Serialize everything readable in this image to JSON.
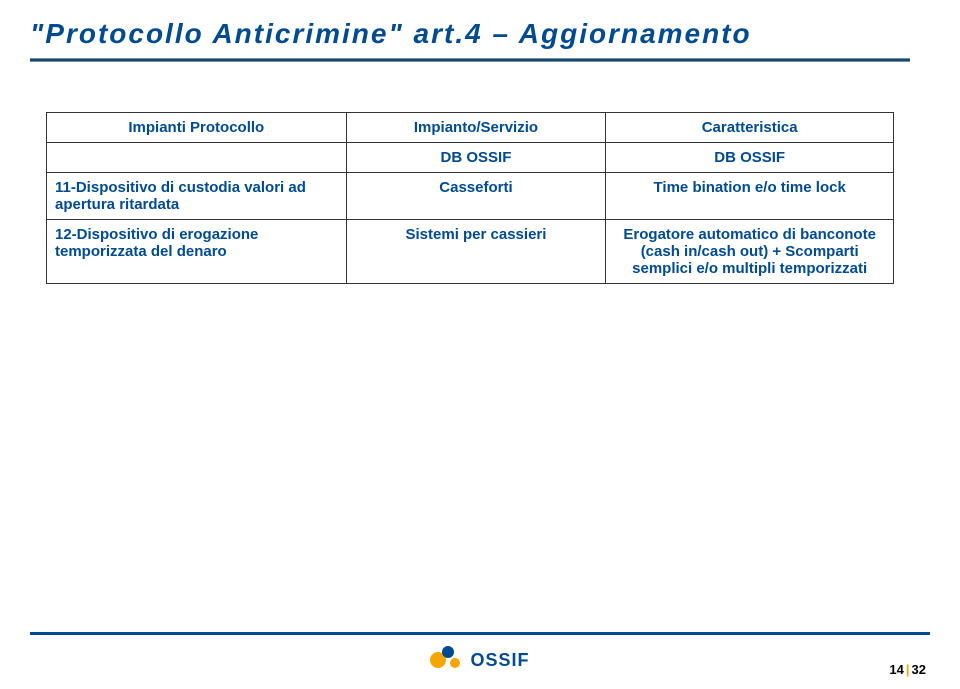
{
  "title": "\"Protocollo Anticrimine\" art.4 – Aggiornamento",
  "table": {
    "headers": [
      "Impianti Protocollo",
      "Impianto/Servizio",
      "Caratteristica"
    ],
    "dbossif_row": [
      "",
      "DB OSSIF",
      "DB OSSIF"
    ],
    "rows": [
      {
        "c1": "11-Dispositivo di custodia valori ad apertura ritardata",
        "c2": "Casseforti",
        "c3": "Time bination e/o time lock"
      },
      {
        "c1": "12-Dispositivo di erogazione temporizzata del denaro",
        "c2": "Sistemi per cassieri",
        "c3": "Erogatore automatico di banconote (cash in/cash out) + Scomparti semplici e/o multipli temporizzati"
      }
    ]
  },
  "footer": {
    "logo_text": "OSSIF",
    "page_current": "14",
    "page_total": "32"
  },
  "colors": {
    "brand_blue": "#004a8f",
    "brand_orange": "#f7a600",
    "background": "#ffffff"
  }
}
